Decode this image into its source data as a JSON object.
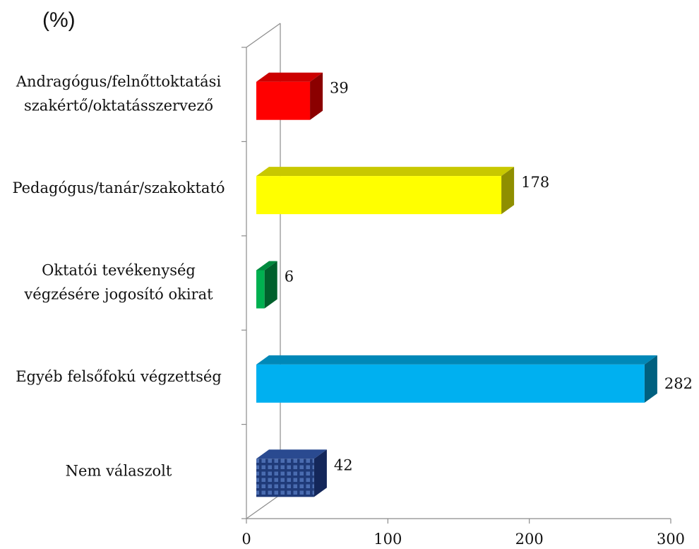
{
  "chart_data": {
    "type": "bar",
    "orientation": "horizontal",
    "three_d": true,
    "unit_label": "(%)",
    "title": "",
    "xlabel": "",
    "ylabel": "",
    "xlim": [
      0,
      300
    ],
    "x_ticks": [
      "0",
      "100",
      "200",
      "300"
    ],
    "grid": false,
    "legend": "none",
    "categories": [
      {
        "lines": [
          "Andragógus/felnőttoktatási",
          "szakértő/oktatásszervező"
        ],
        "value": 39,
        "label": "39",
        "color": "#ff0000",
        "side_color": "#8b0000",
        "top_color": "#cc0000",
        "pattern": false
      },
      {
        "lines": [
          "Pedagógus/tanár/szakoktató"
        ],
        "value": 178,
        "label": "178",
        "color": "#ffff00",
        "side_color": "#8f8f00",
        "top_color": "#c8c800",
        "pattern": false
      },
      {
        "lines": [
          "Oktatói tevékenység",
          "végzésére jogosító okirat"
        ],
        "value": 6,
        "label": "6",
        "color": "#00b050",
        "side_color": "#00602c",
        "top_color": "#008a3e",
        "pattern": false
      },
      {
        "lines": [
          "Egyéb felsőfokú végzettség"
        ],
        "value": 282,
        "label": "282",
        "color": "#00b0f0",
        "side_color": "#00607f",
        "top_color": "#0088b8",
        "pattern": false
      },
      {
        "lines": [
          "Nem válaszolt"
        ],
        "value": 42,
        "label": "42",
        "color": "#1f3a78",
        "side_color": "#14275a",
        "top_color": "#1a3068",
        "pattern": true
      }
    ]
  }
}
